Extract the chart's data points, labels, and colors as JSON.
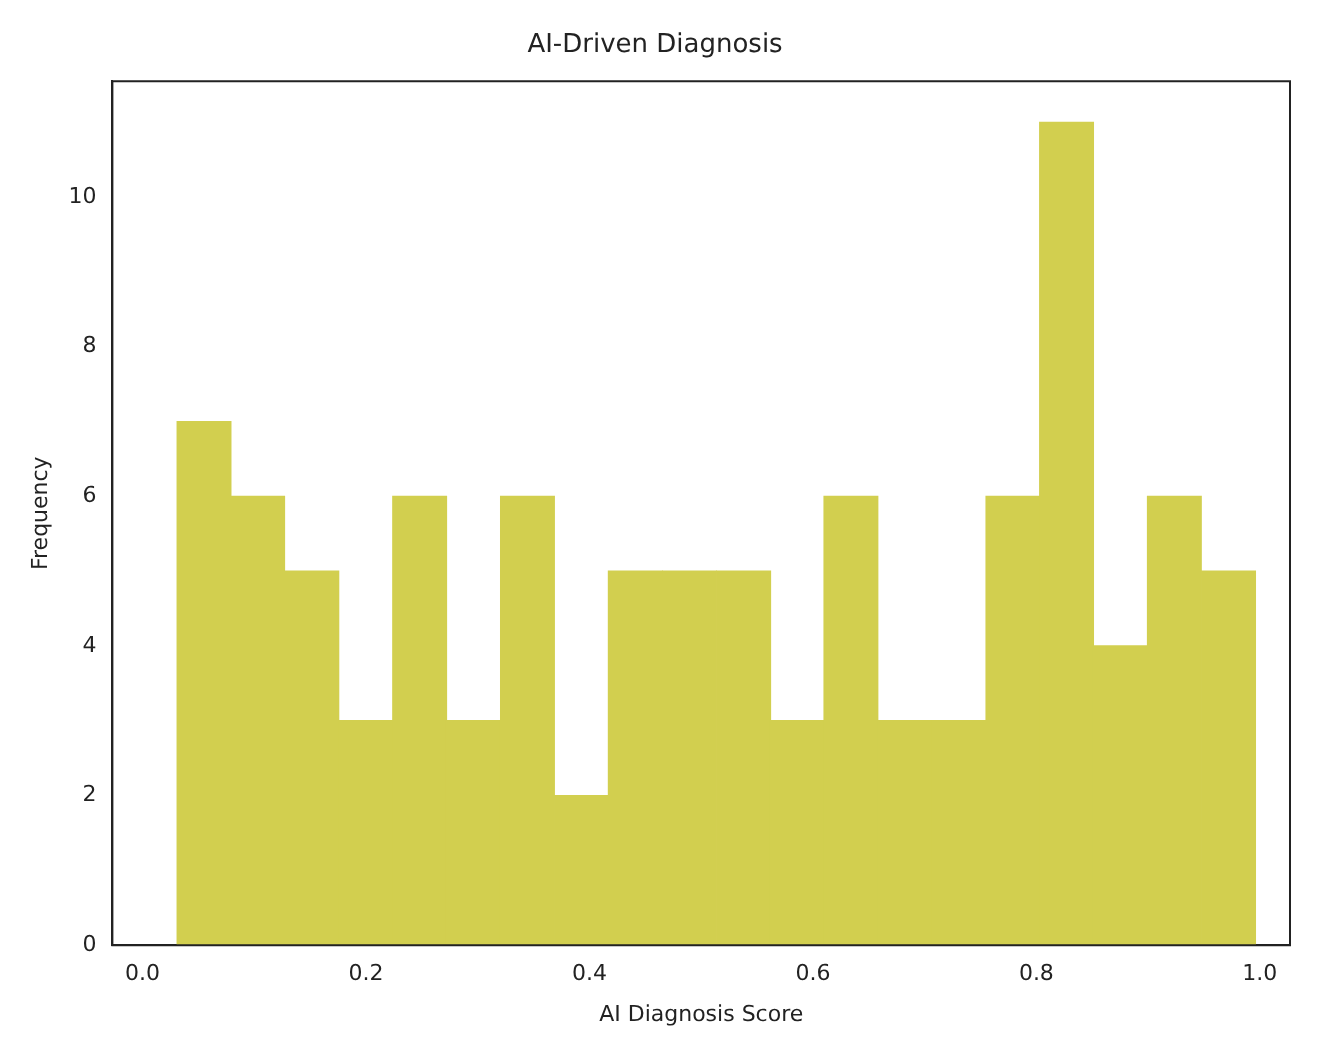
{
  "chart_data": {
    "type": "histogram",
    "title": "AI-Driven Diagnosis",
    "xlabel": "AI Diagnosis Score",
    "ylabel": "Frequency",
    "bins": [
      0.031,
      0.079,
      0.127,
      0.176,
      0.224,
      0.272,
      0.32,
      0.369,
      0.417,
      0.465,
      0.514,
      0.562,
      0.61,
      0.658,
      0.706,
      0.755,
      0.803,
      0.851,
      0.899,
      0.948,
      0.996
    ],
    "values": [
      7,
      6,
      5,
      3,
      6,
      3,
      6,
      2,
      5,
      5,
      5,
      3,
      6,
      3,
      3,
      6,
      11,
      4,
      6,
      5
    ],
    "color": "#d2cf4f",
    "xlim": [
      -0.027,
      1.027
    ],
    "xticks": [
      {
        "value": 0,
        "label": "0.0"
      },
      0.2,
      0.4,
      0.6,
      0.8,
      {
        "value": 1,
        "label": "1.0"
      }
    ],
    "ylim": [
      0,
      11.55
    ],
    "yticks": [
      0,
      2,
      4,
      6,
      8,
      10
    ],
    "grid": false,
    "legend": false
  }
}
